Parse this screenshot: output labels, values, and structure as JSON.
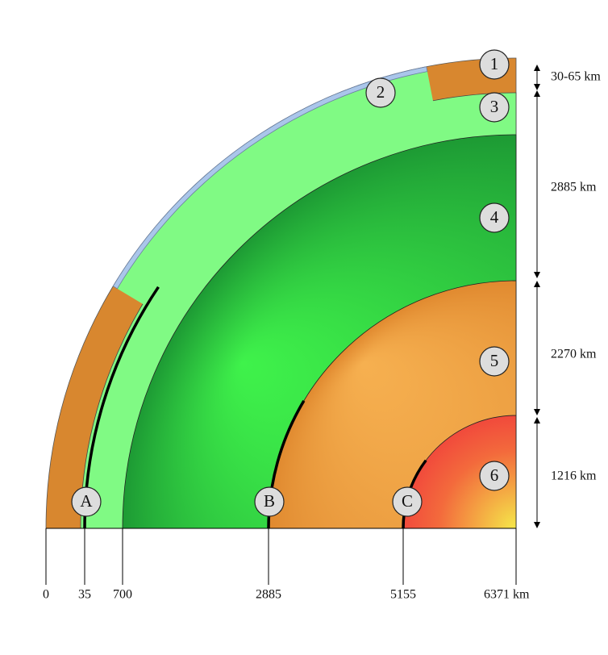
{
  "layers": [
    {
      "label": "1"
    },
    {
      "label": "2"
    },
    {
      "label": "3"
    },
    {
      "label": "4"
    },
    {
      "label": "5"
    },
    {
      "label": "6"
    }
  ],
  "boundaries": [
    {
      "label": "A"
    },
    {
      "label": "B"
    },
    {
      "label": "C"
    }
  ],
  "thickness_labels": [
    "30-65 km",
    "2885 km",
    "2270 km",
    "1216 km"
  ],
  "depth_labels": [
    "0",
    "35",
    "700",
    "2885",
    "5155",
    "6371 km"
  ]
}
